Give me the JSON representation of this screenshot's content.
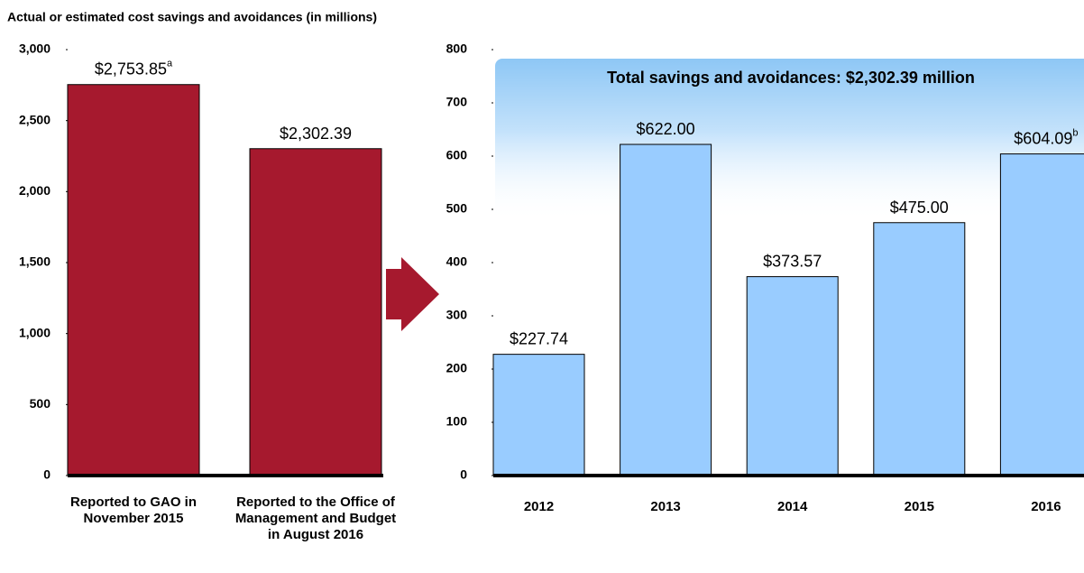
{
  "title": "Actual or estimated cost savings and avoidances (in millions)",
  "chart_data": [
    {
      "type": "bar",
      "categories": [
        "Reported to GAO in November 2015",
        "Reported to the Office of Management and Budget in August 2016"
      ],
      "values": [
        2753.85,
        2302.39
      ],
      "value_labels": [
        "$2,753.85",
        "$2,302.39"
      ],
      "value_notes": [
        "a",
        null
      ],
      "color": "#a6192e",
      "ylim": [
        0,
        3000
      ],
      "yticks": [
        0,
        500,
        {
          "value": 1000,
          "label": "1,000"
        },
        {
          "value": 1500,
          "label": "1,500"
        },
        {
          "value": 2000,
          "label": "2,000"
        },
        {
          "value": 2500,
          "label": "2,500"
        },
        {
          "value": 3000,
          "label": "3,000"
        }
      ]
    },
    {
      "type": "bar",
      "annotation": "Total savings and avoidances: $2,302.39 million",
      "categories": [
        "2012",
        "2013",
        "2014",
        "2015",
        "2016"
      ],
      "values": [
        227.74,
        622.0,
        373.57,
        475.0,
        604.09
      ],
      "value_labels": [
        "$227.74",
        "$622.00",
        "$373.57",
        "$475.00",
        "$604.09"
      ],
      "value_notes": [
        null,
        null,
        null,
        null,
        "b"
      ],
      "color": "#99ccff",
      "ylim": [
        0,
        800
      ],
      "yticks": [
        0,
        100,
        200,
        300,
        400,
        500,
        600,
        700,
        800
      ]
    }
  ]
}
